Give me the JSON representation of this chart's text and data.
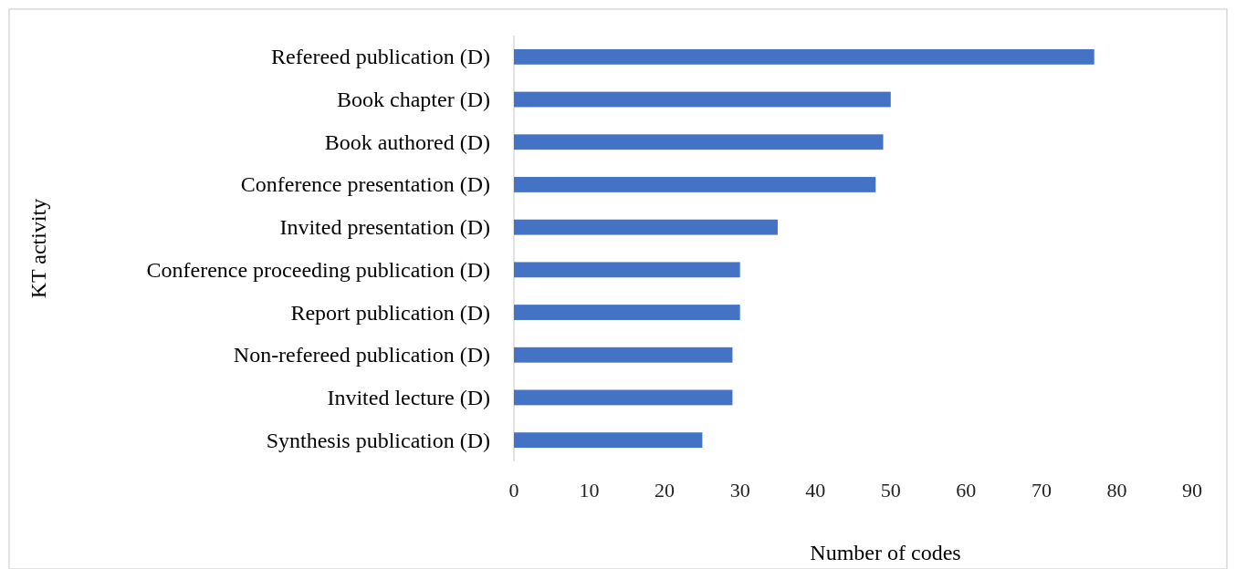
{
  "chart_data": {
    "type": "bar",
    "orientation": "horizontal",
    "xlabel": "Number of codes",
    "ylabel": "KT activity",
    "categories": [
      "Refereed publication (D)",
      "Book chapter (D)",
      "Book authored (D)",
      "Conference presentation (D)",
      "Invited presentation (D)",
      "Conference proceeding publication (D)",
      "Report publication (D)",
      "Non-refereed publication (D)",
      "Invited lecture (D)",
      "Synthesis publication (D)"
    ],
    "values": [
      77,
      50,
      49,
      48,
      35,
      30,
      30,
      29,
      29,
      25
    ],
    "color": "#4472c4",
    "xlim": [
      0,
      90
    ],
    "xticks": [
      0,
      10,
      20,
      30,
      40,
      50,
      60,
      70,
      80,
      90
    ]
  }
}
